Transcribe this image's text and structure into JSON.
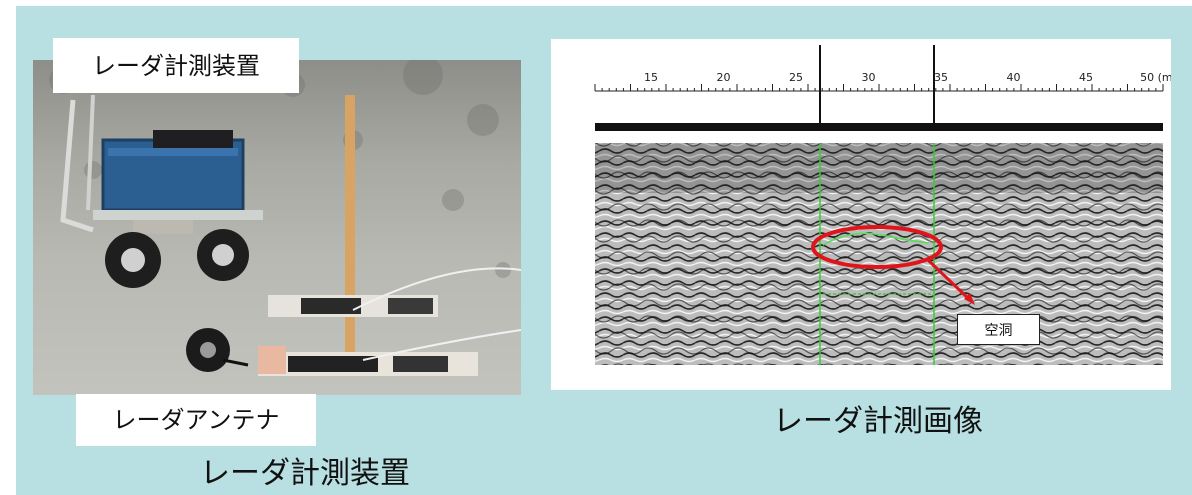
{
  "labels": {
    "device_top": "レーダ計測装置",
    "antenna": "レーダアンテナ",
    "caption_left": "レーダ計測装置",
    "caption_right": "レーダ計測画像",
    "void": "空洞"
  },
  "radar_scale": {
    "ticks": [
      "15",
      "20",
      "25",
      "30",
      "35",
      "40",
      "45",
      "50 (m)"
    ]
  },
  "colors": {
    "background": "#b8dfe1",
    "highlight_ellipse": "#e0151b",
    "marker_line": "#33cc33"
  }
}
